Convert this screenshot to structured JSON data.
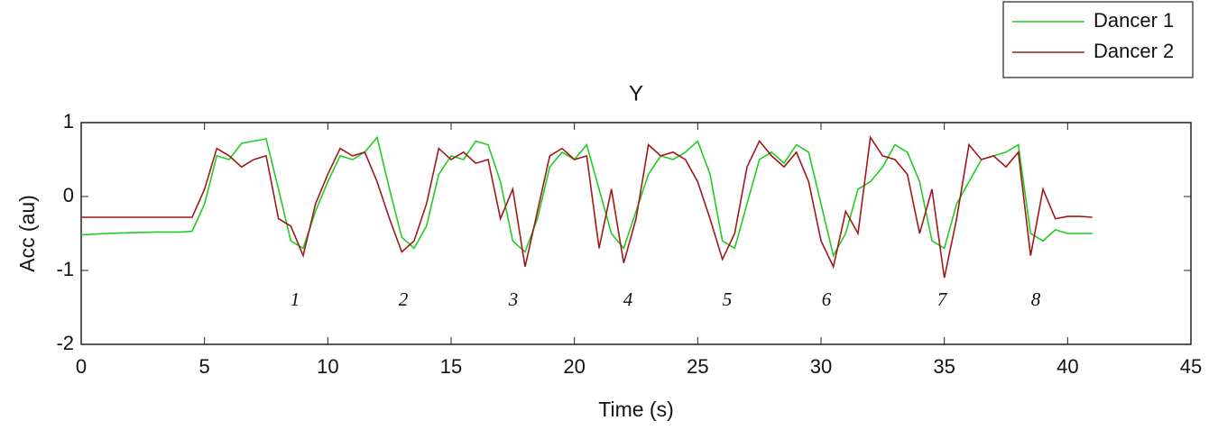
{
  "chart_data": {
    "type": "line",
    "title": "Y",
    "x_label": "Time (s)",
    "y_label": "Acc (au)",
    "x": [
      0,
      1,
      2,
      3,
      4,
      4.5,
      5,
      5.5,
      6,
      6.5,
      7,
      7.5,
      8,
      8.5,
      9,
      9.5,
      10,
      10.5,
      11,
      11.5,
      12,
      12.5,
      13,
      13.5,
      14,
      14.5,
      15,
      15.5,
      16,
      16.5,
      17,
      17.5,
      18,
      18.5,
      19,
      19.5,
      20,
      20.5,
      21,
      21.5,
      22,
      22.5,
      23,
      23.5,
      24,
      24.5,
      25,
      25.5,
      26,
      26.5,
      27,
      27.5,
      28,
      28.5,
      29,
      29.5,
      30,
      30.5,
      31,
      31.5,
      32,
      32.5,
      33,
      33.5,
      34,
      34.5,
      35,
      35.5,
      36,
      36.5,
      37,
      37.5,
      38,
      38.5,
      39,
      39.5,
      40,
      40.5,
      41
    ],
    "series": [
      {
        "name": "Dancer 1",
        "color": "#22cc22",
        "values": [
          -0.52,
          -0.5,
          -0.49,
          -0.48,
          -0.48,
          -0.47,
          -0.1,
          0.55,
          0.5,
          0.72,
          0.75,
          0.78,
          0.1,
          -0.6,
          -0.7,
          -0.2,
          0.2,
          0.55,
          0.5,
          0.6,
          0.8,
          0.1,
          -0.55,
          -0.7,
          -0.4,
          0.3,
          0.55,
          0.5,
          0.75,
          0.7,
          0.2,
          -0.6,
          -0.75,
          -0.3,
          0.4,
          0.6,
          0.5,
          0.7,
          0.1,
          -0.5,
          -0.7,
          -0.2,
          0.3,
          0.55,
          0.5,
          0.6,
          0.75,
          0.3,
          -0.6,
          -0.7,
          -0.1,
          0.5,
          0.6,
          0.45,
          0.7,
          0.6,
          -0.1,
          -0.8,
          -0.5,
          0.1,
          0.2,
          0.4,
          0.7,
          0.6,
          0.2,
          -0.6,
          -0.7,
          -0.1,
          0.2,
          0.5,
          0.55,
          0.6,
          0.7,
          -0.5,
          -0.6,
          -0.45,
          -0.5,
          -0.5,
          -0.5
        ]
      },
      {
        "name": "Dancer 2",
        "color": "#a01818",
        "values": [
          -0.28,
          -0.28,
          -0.28,
          -0.28,
          -0.28,
          -0.28,
          0.1,
          0.65,
          0.55,
          0.4,
          0.5,
          0.55,
          -0.3,
          -0.4,
          -0.8,
          -0.1,
          0.3,
          0.65,
          0.55,
          0.6,
          0.2,
          -0.3,
          -0.75,
          -0.6,
          -0.1,
          0.65,
          0.5,
          0.6,
          0.45,
          0.5,
          -0.3,
          0.1,
          -0.95,
          -0.2,
          0.55,
          0.65,
          0.5,
          0.55,
          -0.7,
          0.1,
          -0.9,
          -0.3,
          0.7,
          0.55,
          0.6,
          0.5,
          0.2,
          -0.3,
          -0.85,
          -0.5,
          0.4,
          0.75,
          0.55,
          0.4,
          0.6,
          0.2,
          -0.6,
          -0.95,
          -0.2,
          -0.5,
          0.8,
          0.55,
          0.5,
          0.3,
          -0.5,
          0.1,
          -1.1,
          -0.3,
          0.7,
          0.5,
          0.55,
          0.4,
          0.6,
          -0.8,
          0.1,
          -0.3,
          -0.27,
          -0.27,
          -0.28
        ]
      }
    ],
    "xlim": [
      0,
      45
    ],
    "xticks": [
      0,
      5,
      10,
      15,
      20,
      25,
      30,
      35,
      40,
      45
    ],
    "ylim": [
      -2,
      1
    ],
    "yticks": [
      -2,
      -1,
      0,
      1
    ],
    "annotations": [
      "1",
      "2",
      "3",
      "4",
      "5",
      "6",
      "7",
      "8"
    ],
    "legend": "upper right"
  }
}
